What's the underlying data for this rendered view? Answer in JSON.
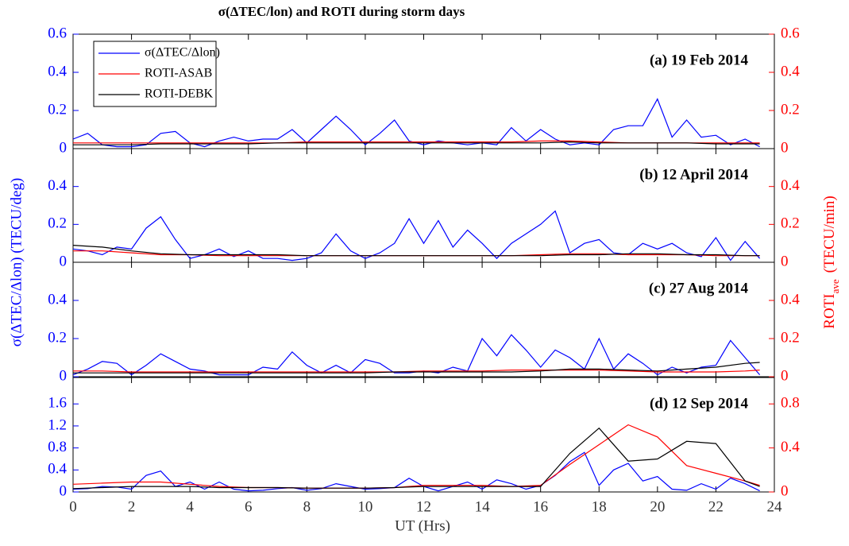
{
  "chart_data": [
    {
      "type": "line",
      "title": "σ(ΔTEC/lon) and ROTI during storm days",
      "annotation": "(a) 19 Feb 2014",
      "legend": "upper left",
      "xlim": [
        0,
        24
      ],
      "ylim": [
        0,
        0.6
      ],
      "yticks": [
        0,
        0.2,
        0.4,
        0.6
      ],
      "y2lim": [
        0,
        0.6
      ],
      "y2ticks": [
        0,
        0.2,
        0.4,
        0.6
      ],
      "series": [
        {
          "name": "σ(ΔTEC/Δlon)",
          "color": "#0000ff",
          "axis": "y",
          "x": [
            0,
            0.5,
            1,
            1.5,
            2,
            2.5,
            3,
            3.5,
            4,
            4.5,
            5,
            5.5,
            6,
            6.5,
            7,
            7.5,
            8,
            8.5,
            9,
            9.5,
            10,
            10.5,
            11,
            11.5,
            12,
            12.5,
            13,
            13.5,
            14,
            14.5,
            15,
            15.5,
            16,
            16.5,
            17,
            17.5,
            18,
            18.5,
            19,
            19.5,
            20,
            20.5,
            21,
            21.5,
            22,
            22.5,
            23,
            23.5
          ],
          "values": [
            0.05,
            0.08,
            0.02,
            0.01,
            0.01,
            0.02,
            0.08,
            0.09,
            0.03,
            0.01,
            0.04,
            0.06,
            0.04,
            0.05,
            0.05,
            0.1,
            0.03,
            0.1,
            0.17,
            0.1,
            0.02,
            0.08,
            0.15,
            0.04,
            0.02,
            0.04,
            0.03,
            0.02,
            0.03,
            0.02,
            0.11,
            0.04,
            0.1,
            0.05,
            0.02,
            0.03,
            0.02,
            0.1,
            0.12,
            0.12,
            0.26,
            0.06,
            0.15,
            0.06,
            0.07,
            0.02,
            0.05,
            0.01
          ]
        },
        {
          "name": "ROTI-ASAB",
          "color": "#ff0000",
          "axis": "y2",
          "x": [
            0,
            1,
            2,
            3,
            4,
            5,
            6,
            7,
            8,
            9,
            10,
            11,
            12,
            13,
            14,
            15,
            16,
            17,
            18,
            19,
            20,
            21,
            22,
            23,
            23.5
          ],
          "values": [
            0.03,
            0.03,
            0.03,
            0.03,
            0.03,
            0.03,
            0.03,
            0.03,
            0.035,
            0.035,
            0.035,
            0.035,
            0.035,
            0.035,
            0.035,
            0.035,
            0.04,
            0.04,
            0.035,
            0.03,
            0.03,
            0.03,
            0.03,
            0.03,
            0.03
          ]
        },
        {
          "name": "ROTI-DEBK",
          "color": "#000000",
          "axis": "y2",
          "x": [
            0,
            1,
            2,
            3,
            4,
            5,
            6,
            7,
            8,
            9,
            10,
            11,
            12,
            13,
            14,
            15,
            16,
            17,
            18,
            19,
            20,
            21,
            22,
            23,
            23.5
          ],
          "values": [
            0.02,
            0.02,
            0.02,
            0.025,
            0.025,
            0.025,
            0.025,
            0.03,
            0.03,
            0.03,
            0.03,
            0.03,
            0.03,
            0.03,
            0.03,
            0.03,
            0.03,
            0.035,
            0.03,
            0.03,
            0.03,
            0.03,
            0.025,
            0.025,
            0.025
          ]
        }
      ]
    },
    {
      "type": "line",
      "annotation": "(b) 12 April 2014",
      "ylabel": "σ(ΔTEC/Δlon) (TECU/deg)",
      "y2label": [
        "ROTI",
        "ave",
        "(TECU/min)"
      ],
      "xlim": [
        0,
        24
      ],
      "ylim": [
        0,
        0.6
      ],
      "yticks": [
        0,
        0.2,
        0.4
      ],
      "y2lim": [
        0,
        0.6
      ],
      "y2ticks": [
        0,
        0.2,
        0.4
      ],
      "series": [
        {
          "color": "#0000ff",
          "axis": "y",
          "x": [
            0,
            0.5,
            1,
            1.5,
            2,
            2.5,
            3,
            3.5,
            4,
            4.5,
            5,
            5.5,
            6,
            6.5,
            7,
            7.5,
            8,
            8.5,
            9,
            9.5,
            10,
            10.5,
            11,
            11.5,
            12,
            12.5,
            13,
            13.5,
            14,
            14.5,
            15,
            15.5,
            16,
            16.5,
            17,
            17.5,
            18,
            18.5,
            19,
            19.5,
            20,
            20.5,
            21,
            21.5,
            22,
            22.5,
            23,
            23.5
          ],
          "values": [
            0.07,
            0.06,
            0.04,
            0.08,
            0.07,
            0.18,
            0.24,
            0.12,
            0.02,
            0.04,
            0.07,
            0.03,
            0.06,
            0.02,
            0.02,
            0.01,
            0.02,
            0.05,
            0.15,
            0.06,
            0.02,
            0.05,
            0.1,
            0.23,
            0.1,
            0.22,
            0.08,
            0.17,
            0.1,
            0.02,
            0.1,
            0.15,
            0.2,
            0.27,
            0.05,
            0.1,
            0.12,
            0.05,
            0.04,
            0.1,
            0.07,
            0.1,
            0.05,
            0.03,
            0.13,
            0.01,
            0.11,
            0.02
          ]
        },
        {
          "color": "#ff0000",
          "axis": "y2",
          "x": [
            0,
            1,
            2,
            3,
            4,
            5,
            6,
            7,
            8,
            9,
            10,
            11,
            12,
            13,
            14,
            15,
            16,
            17,
            18,
            19,
            20,
            21,
            22,
            23,
            23.5
          ],
          "values": [
            0.06,
            0.06,
            0.05,
            0.04,
            0.04,
            0.035,
            0.035,
            0.035,
            0.035,
            0.035,
            0.035,
            0.035,
            0.035,
            0.035,
            0.035,
            0.035,
            0.04,
            0.045,
            0.045,
            0.04,
            0.04,
            0.04,
            0.035,
            0.035,
            0.035
          ]
        },
        {
          "color": "#000000",
          "axis": "y2",
          "x": [
            0,
            1,
            2,
            3,
            4,
            5,
            6,
            7,
            8,
            9,
            10,
            11,
            12,
            13,
            14,
            15,
            16,
            17,
            18,
            19,
            20,
            21,
            22,
            23,
            23.5
          ],
          "values": [
            0.09,
            0.08,
            0.06,
            0.045,
            0.04,
            0.04,
            0.04,
            0.04,
            0.035,
            0.035,
            0.035,
            0.035,
            0.035,
            0.035,
            0.035,
            0.035,
            0.035,
            0.04,
            0.04,
            0.045,
            0.045,
            0.04,
            0.04,
            0.035,
            0.035
          ]
        }
      ]
    },
    {
      "type": "line",
      "annotation": "(c) 27 Aug 2014",
      "xlim": [
        0,
        24
      ],
      "ylim": [
        0,
        0.6
      ],
      "yticks": [
        0,
        0.2,
        0.4
      ],
      "y2lim": [
        0,
        0.6
      ],
      "y2ticks": [
        0,
        0.2,
        0.4
      ],
      "series": [
        {
          "color": "#0000ff",
          "axis": "y",
          "x": [
            0,
            0.5,
            1,
            1.5,
            2,
            2.5,
            3,
            3.5,
            4,
            4.5,
            5,
            5.5,
            6,
            6.5,
            7,
            7.5,
            8,
            8.5,
            9,
            9.5,
            10,
            10.5,
            11,
            11.5,
            12,
            12.5,
            13,
            13.5,
            14,
            14.5,
            15,
            15.5,
            16,
            16.5,
            17,
            17.5,
            18,
            18.5,
            19,
            19.5,
            20,
            20.5,
            21,
            21.5,
            22,
            22.5,
            23,
            23.5
          ],
          "values": [
            0.01,
            0.04,
            0.08,
            0.07,
            0.01,
            0.06,
            0.12,
            0.08,
            0.04,
            0.03,
            0.01,
            0.01,
            0.01,
            0.05,
            0.04,
            0.13,
            0.06,
            0.02,
            0.06,
            0.02,
            0.09,
            0.07,
            0.02,
            0.02,
            0.03,
            0.02,
            0.05,
            0.03,
            0.2,
            0.11,
            0.22,
            0.14,
            0.05,
            0.14,
            0.1,
            0.04,
            0.2,
            0.04,
            0.12,
            0.07,
            0.01,
            0.05,
            0.02,
            0.05,
            0.06,
            0.19,
            0.1,
            0.01
          ]
        },
        {
          "color": "#ff0000",
          "axis": "y2",
          "x": [
            0,
            1,
            2,
            3,
            4,
            5,
            6,
            7,
            8,
            9,
            10,
            11,
            12,
            13,
            14,
            15,
            16,
            17,
            18,
            19,
            20,
            21,
            22,
            23,
            23.5
          ],
          "values": [
            0.03,
            0.03,
            0.025,
            0.025,
            0.025,
            0.025,
            0.025,
            0.025,
            0.025,
            0.025,
            0.025,
            0.025,
            0.03,
            0.03,
            0.03,
            0.035,
            0.035,
            0.035,
            0.035,
            0.03,
            0.025,
            0.025,
            0.025,
            0.03,
            0.035
          ]
        },
        {
          "color": "#000000",
          "axis": "y2",
          "x": [
            0,
            1,
            2,
            3,
            4,
            5,
            6,
            7,
            8,
            9,
            10,
            11,
            12,
            13,
            14,
            15,
            16,
            17,
            18,
            19,
            20,
            21,
            22,
            23,
            23.5
          ],
          "values": [
            0.02,
            0.02,
            0.02,
            0.02,
            0.02,
            0.02,
            0.02,
            0.02,
            0.02,
            0.02,
            0.02,
            0.025,
            0.025,
            0.025,
            0.025,
            0.025,
            0.03,
            0.04,
            0.04,
            0.035,
            0.03,
            0.04,
            0.05,
            0.07,
            0.075
          ]
        }
      ]
    },
    {
      "type": "line",
      "annotation": "(d) 12 Sep 2014",
      "xlabel": "UT (Hrs)",
      "xlim": [
        0,
        24
      ],
      "xticks": [
        0,
        2,
        4,
        6,
        8,
        10,
        12,
        14,
        16,
        18,
        20,
        22,
        24
      ],
      "ylim": [
        0,
        2.08
      ],
      "yticks": [
        0,
        0.4,
        0.8,
        1.2,
        1.6
      ],
      "y2lim": [
        0,
        1.04
      ],
      "y2ticks": [
        0,
        0.4,
        0.8
      ],
      "series": [
        {
          "color": "#0000ff",
          "axis": "y",
          "x": [
            0,
            0.5,
            1,
            1.5,
            2,
            2.5,
            3,
            3.5,
            4,
            4.5,
            5,
            5.5,
            6,
            6.5,
            7,
            7.5,
            8,
            8.5,
            9,
            9.5,
            10,
            10.5,
            11,
            11.5,
            12,
            12.5,
            13,
            13.5,
            14,
            14.5,
            15,
            15.5,
            16,
            16.5,
            17,
            17.5,
            18,
            18.5,
            19,
            19.5,
            20,
            20.5,
            21,
            21.5,
            22,
            22.5,
            23,
            23.5
          ],
          "values": [
            0.05,
            0.06,
            0.1,
            0.09,
            0.05,
            0.3,
            0.38,
            0.1,
            0.18,
            0.05,
            0.18,
            0.05,
            0.02,
            0.03,
            0.06,
            0.08,
            0.03,
            0.06,
            0.15,
            0.1,
            0.05,
            0.06,
            0.08,
            0.25,
            0.1,
            0.02,
            0.1,
            0.18,
            0.05,
            0.22,
            0.15,
            0.05,
            0.12,
            0.3,
            0.55,
            0.72,
            0.12,
            0.4,
            0.52,
            0.2,
            0.28,
            0.05,
            0.03,
            0.15,
            0.05,
            0.25,
            0.15,
            0.02
          ]
        },
        {
          "color": "#ff0000",
          "axis": "y2",
          "x": [
            0,
            1,
            2,
            3,
            4,
            5,
            6,
            7,
            8,
            9,
            10,
            11,
            12,
            13,
            14,
            15,
            16,
            17,
            18,
            19,
            20,
            21,
            22,
            23,
            23.5
          ],
          "values": [
            0.07,
            0.08,
            0.09,
            0.09,
            0.07,
            0.05,
            0.04,
            0.04,
            0.035,
            0.035,
            0.035,
            0.04,
            0.06,
            0.06,
            0.06,
            0.05,
            0.06,
            0.25,
            0.43,
            0.61,
            0.5,
            0.24,
            0.17,
            0.1,
            0.06
          ]
        },
        {
          "color": "#000000",
          "axis": "y2",
          "x": [
            0,
            1,
            2,
            3,
            4,
            5,
            6,
            7,
            8,
            9,
            10,
            11,
            12,
            13,
            14,
            15,
            16,
            17,
            18,
            19,
            20,
            21,
            22,
            23,
            23.5
          ],
          "values": [
            0.03,
            0.04,
            0.05,
            0.05,
            0.05,
            0.04,
            0.04,
            0.04,
            0.035,
            0.035,
            0.035,
            0.04,
            0.05,
            0.05,
            0.05,
            0.05,
            0.05,
            0.35,
            0.58,
            0.28,
            0.3,
            0.46,
            0.44,
            0.1,
            0.05
          ]
        }
      ]
    }
  ]
}
